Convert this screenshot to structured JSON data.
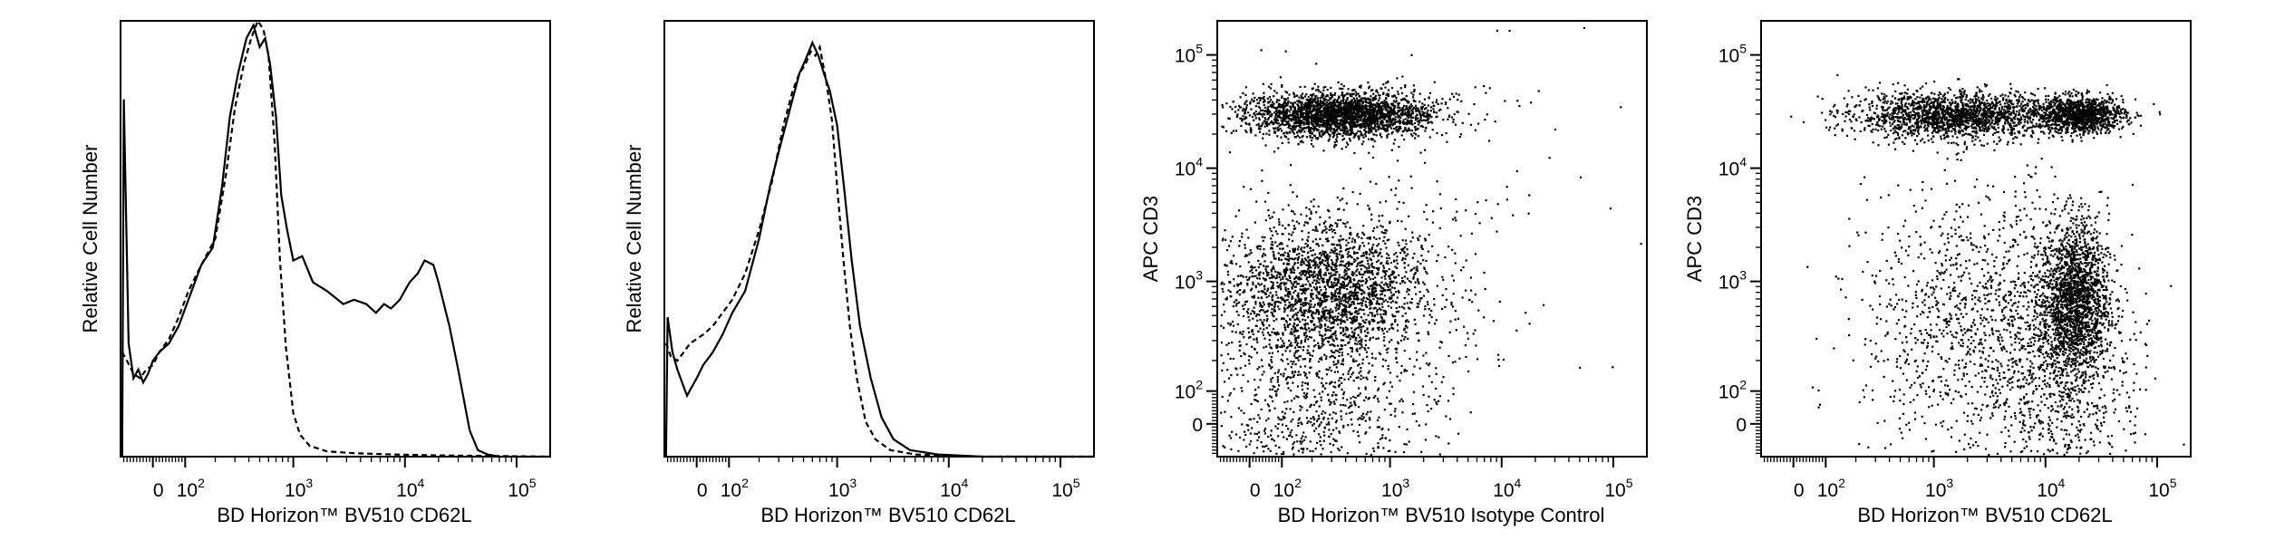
{
  "chart_data": [
    {
      "type": "line",
      "panel": "histogram",
      "xlabel": "BD Horizon™ BV510 CD62L",
      "ylabel": "Relative Cell Number",
      "x_scale": "biexponential",
      "x_ticks": [
        {
          "value": 0,
          "base": "0",
          "exp": ""
        },
        {
          "value": 100,
          "base": "10",
          "exp": "2"
        },
        {
          "value": 1000,
          "base": "10",
          "exp": "3"
        },
        {
          "value": 10000,
          "base": "10",
          "exp": "4"
        },
        {
          "value": 100000,
          "base": "10",
          "exp": "5"
        }
      ],
      "xlim": [
        -100,
        200000
      ],
      "ylim": [
        0,
        100
      ],
      "series": [
        {
          "style": "solid",
          "points": [
            [
              -95,
              0
            ],
            [
              -90,
              82
            ],
            [
              -75,
              26
            ],
            [
              -60,
              18
            ],
            [
              -45,
              20
            ],
            [
              -30,
              17
            ],
            [
              -15,
              19
            ],
            [
              0,
              22
            ],
            [
              20,
              24
            ],
            [
              50,
              26
            ],
            [
              80,
              30
            ],
            [
              110,
              36
            ],
            [
              150,
              44
            ],
            [
              190,
              48
            ],
            [
              230,
              62
            ],
            [
              270,
              78
            ],
            [
              320,
              88
            ],
            [
              380,
              96
            ],
            [
              440,
              99
            ],
            [
              500,
              94
            ],
            [
              560,
              96
            ],
            [
              620,
              90
            ],
            [
              700,
              78
            ],
            [
              780,
              60
            ],
            [
              880,
              52
            ],
            [
              1000,
              45
            ],
            [
              1200,
              46
            ],
            [
              1500,
              40
            ],
            [
              2000,
              38
            ],
            [
              2800,
              35
            ],
            [
              3500,
              36
            ],
            [
              4500,
              35
            ],
            [
              5500,
              33
            ],
            [
              6500,
              35
            ],
            [
              7500,
              34
            ],
            [
              9000,
              36
            ],
            [
              11000,
              40
            ],
            [
              13000,
              42
            ],
            [
              15000,
              45
            ],
            [
              18000,
              44
            ],
            [
              20000,
              40
            ],
            [
              25000,
              30
            ],
            [
              30000,
              20
            ],
            [
              38000,
              6
            ],
            [
              45000,
              1.5
            ],
            [
              55000,
              0.5
            ],
            [
              70000,
              0
            ],
            [
              200000,
              0
            ]
          ]
        },
        {
          "style": "dashed",
          "points": [
            [
              -95,
              24
            ],
            [
              -80,
              22
            ],
            [
              -60,
              19
            ],
            [
              -40,
              18
            ],
            [
              -20,
              20
            ],
            [
              0,
              21
            ],
            [
              20,
              24
            ],
            [
              50,
              27
            ],
            [
              80,
              32
            ],
            [
              110,
              38
            ],
            [
              150,
              44
            ],
            [
              200,
              50
            ],
            [
              250,
              65
            ],
            [
              300,
              80
            ],
            [
              360,
              90
            ],
            [
              420,
              96
            ],
            [
              480,
              100
            ],
            [
              540,
              98
            ],
            [
              600,
              92
            ],
            [
              680,
              72
            ],
            [
              760,
              45
            ],
            [
              860,
              25
            ],
            [
              1000,
              10
            ],
            [
              1150,
              5
            ],
            [
              1400,
              2.5
            ],
            [
              2000,
              1.2
            ],
            [
              3500,
              0.8
            ],
            [
              8000,
              0.5
            ],
            [
              20000,
              0.3
            ],
            [
              200000,
              0
            ]
          ]
        }
      ]
    },
    {
      "type": "line",
      "panel": "histogram",
      "xlabel": "BD Horizon™ BV510 CD62L",
      "ylabel": "Relative Cell Number",
      "x_scale": "biexponential",
      "x_ticks": [
        {
          "value": 0,
          "base": "0",
          "exp": ""
        },
        {
          "value": 100,
          "base": "10",
          "exp": "2"
        },
        {
          "value": 1000,
          "base": "10",
          "exp": "3"
        },
        {
          "value": 10000,
          "base": "10",
          "exp": "4"
        },
        {
          "value": 100000,
          "base": "10",
          "exp": "5"
        }
      ],
      "xlim": [
        -100,
        200000
      ],
      "ylim": [
        0,
        100
      ],
      "series": [
        {
          "style": "solid",
          "points": [
            [
              -95,
              0
            ],
            [
              -90,
              32
            ],
            [
              -75,
              24
            ],
            [
              -60,
              20
            ],
            [
              -45,
              17
            ],
            [
              -30,
              14
            ],
            [
              -15,
              16
            ],
            [
              0,
              18
            ],
            [
              20,
              21
            ],
            [
              50,
              24
            ],
            [
              80,
              28
            ],
            [
              110,
              33
            ],
            [
              150,
              38
            ],
            [
              200,
              50
            ],
            [
              250,
              62
            ],
            [
              300,
              70
            ],
            [
              380,
              80
            ],
            [
              460,
              88
            ],
            [
              520,
              91
            ],
            [
              600,
              95
            ],
            [
              680,
              92
            ],
            [
              760,
              88
            ],
            [
              860,
              84
            ],
            [
              1000,
              76
            ],
            [
              1150,
              62
            ],
            [
              1350,
              45
            ],
            [
              1600,
              30
            ],
            [
              2000,
              18
            ],
            [
              2500,
              9
            ],
            [
              3200,
              4
            ],
            [
              4500,
              1.5
            ],
            [
              8000,
              0.5
            ],
            [
              20000,
              0
            ],
            [
              200000,
              0
            ]
          ]
        },
        {
          "style": "dashed",
          "points": [
            [
              -95,
              26
            ],
            [
              -80,
              23
            ],
            [
              -60,
              22
            ],
            [
              -40,
              24
            ],
            [
              -20,
              26
            ],
            [
              0,
              27
            ],
            [
              20,
              28
            ],
            [
              50,
              30
            ],
            [
              80,
              33
            ],
            [
              110,
              36
            ],
            [
              150,
              42
            ],
            [
              200,
              52
            ],
            [
              260,
              63
            ],
            [
              330,
              76
            ],
            [
              400,
              84
            ],
            [
              460,
              88
            ],
            [
              520,
              90
            ],
            [
              580,
              93
            ],
            [
              640,
              92
            ],
            [
              700,
              94
            ],
            [
              800,
              86
            ],
            [
              900,
              77
            ],
            [
              1000,
              62
            ],
            [
              1150,
              44
            ],
            [
              1300,
              30
            ],
            [
              1500,
              18
            ],
            [
              1800,
              8
            ],
            [
              2200,
              4
            ],
            [
              3000,
              1.5
            ],
            [
              5000,
              0.5
            ],
            [
              20000,
              0
            ],
            [
              200000,
              0
            ]
          ]
        }
      ]
    },
    {
      "type": "scatter",
      "panel": "dot-plot",
      "xlabel": "BD Horizon™ BV510 Isotype Control",
      "ylabel": "APC CD3",
      "x_scale": "biexponential",
      "y_scale": "biexponential",
      "x_ticks": [
        {
          "value": 0,
          "base": "0",
          "exp": ""
        },
        {
          "value": 100,
          "base": "10",
          "exp": "2"
        },
        {
          "value": 1000,
          "base": "10",
          "exp": "3"
        },
        {
          "value": 10000,
          "base": "10",
          "exp": "4"
        },
        {
          "value": 100000,
          "base": "10",
          "exp": "5"
        }
      ],
      "y_ticks": [
        {
          "value": 0,
          "base": "0",
          "exp": ""
        },
        {
          "value": 100,
          "base": "10",
          "exp": "2"
        },
        {
          "value": 1000,
          "base": "10",
          "exp": "3"
        },
        {
          "value": 10000,
          "base": "10",
          "exp": "4"
        },
        {
          "value": 100000,
          "base": "10",
          "exp": "5"
        }
      ],
      "xlim": [
        -100,
        200000
      ],
      "ylim": [
        -100,
        200000
      ],
      "populations": [
        {
          "name": "",
          "count": 2600,
          "x_center": 350,
          "x_spread_decades": 0.42,
          "y_center": 30000,
          "y_spread_decades": 0.1
        },
        {
          "name": "",
          "count": 2200,
          "x_center": 280,
          "x_spread_decades": 0.45,
          "y_center": 900,
          "y_spread_decades": 0.3
        },
        {
          "name": "",
          "count": 1200,
          "x_center": 200,
          "x_spread_decades": 0.55,
          "y_center": 60,
          "y_spread_decades": 0.6
        },
        {
          "name": "",
          "count": 150,
          "x_center": 2000,
          "x_spread_decades": 1.0,
          "y_center": 3000,
          "y_spread_decades": 1.0
        }
      ]
    },
    {
      "type": "scatter",
      "panel": "dot-plot",
      "xlabel": "BD Horizon™ BV510 CD62L",
      "ylabel": "APC CD3",
      "x_scale": "biexponential",
      "y_scale": "biexponential",
      "x_ticks": [
        {
          "value": 0,
          "base": "0",
          "exp": ""
        },
        {
          "value": 100,
          "base": "10",
          "exp": "2"
        },
        {
          "value": 1000,
          "base": "10",
          "exp": "3"
        },
        {
          "value": 10000,
          "base": "10",
          "exp": "4"
        },
        {
          "value": 100000,
          "base": "10",
          "exp": "5"
        }
      ],
      "y_ticks": [
        {
          "value": 0,
          "base": "0",
          "exp": ""
        },
        {
          "value": 100,
          "base": "10",
          "exp": "2"
        },
        {
          "value": 1000,
          "base": "10",
          "exp": "3"
        },
        {
          "value": 10000,
          "base": "10",
          "exp": "4"
        },
        {
          "value": 100000,
          "base": "10",
          "exp": "5"
        }
      ],
      "xlim": [
        -100,
        200000
      ],
      "ylim": [
        -100,
        200000
      ],
      "populations": [
        {
          "name": "",
          "count": 1800,
          "x_center": 1500,
          "x_spread_decades": 0.45,
          "y_center": 30000,
          "y_spread_decades": 0.1
        },
        {
          "name": "",
          "count": 1200,
          "x_center": 20000,
          "x_spread_decades": 0.2,
          "y_center": 30000,
          "y_spread_decades": 0.08
        },
        {
          "name": "",
          "count": 1800,
          "x_center": 18000,
          "x_spread_decades": 0.15,
          "y_center": 700,
          "y_spread_decades": 0.35
        },
        {
          "name": "",
          "count": 1400,
          "x_center": 3000,
          "x_spread_decades": 0.55,
          "y_center": 400,
          "y_spread_decades": 0.6
        },
        {
          "name": "",
          "count": 600,
          "x_center": 15000,
          "x_spread_decades": 0.3,
          "y_center": 30,
          "y_spread_decades": 0.6
        }
      ]
    }
  ]
}
